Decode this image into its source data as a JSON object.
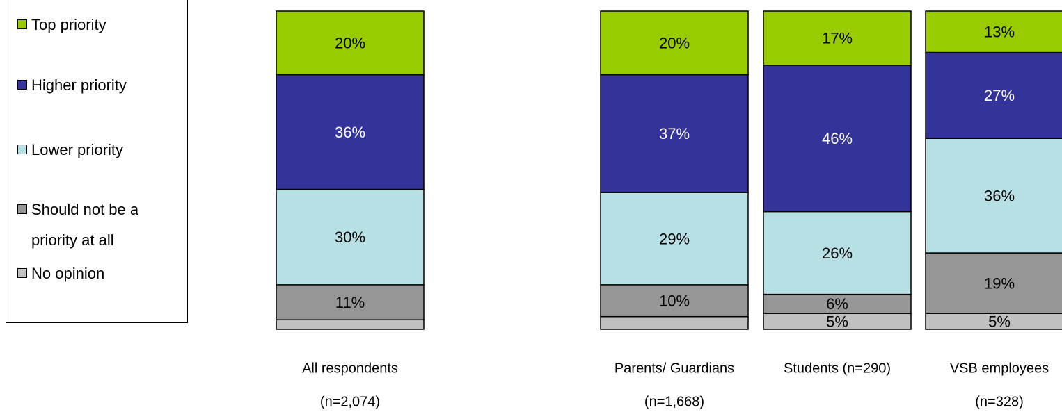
{
  "chart_data": {
    "type": "stacked_bar",
    "categories": [
      [
        "All respondents",
        "(n=2,074)"
      ],
      [
        "Parents/ Guardians",
        "(n=1,668)"
      ],
      [
        "Students (n=290)"
      ],
      [
        "VSB employees",
        "(n=328)"
      ]
    ],
    "series": [
      {
        "name": "Top priority",
        "color": "#99cc00",
        "values": [
          20,
          20,
          17,
          13
        ],
        "value_labels": [
          "20%",
          "20%",
          "17%",
          "13%"
        ]
      },
      {
        "name": "Higher priority",
        "color": "#333399",
        "values": [
          36,
          37,
          46,
          27
        ],
        "value_labels": [
          "36%",
          "37%",
          "46%",
          "27%"
        ]
      },
      {
        "name": "Lower priority",
        "color": "#b7e0e4",
        "values": [
          30,
          29,
          26,
          36
        ],
        "value_labels": [
          "30%",
          "29%",
          "26%",
          "36%"
        ]
      },
      {
        "name": "Should not be a priority at all",
        "color": "#969696",
        "values": [
          11,
          10,
          6,
          19
        ],
        "value_labels": [
          "11%",
          "10%",
          "6%",
          "19%"
        ]
      },
      {
        "name": "No opinion",
        "color": "#c0c0c0",
        "values": [
          3,
          4,
          5,
          5
        ],
        "value_labels": [
          null,
          null,
          "5%",
          "5%"
        ]
      }
    ],
    "ylim": [
      0,
      100
    ]
  }
}
